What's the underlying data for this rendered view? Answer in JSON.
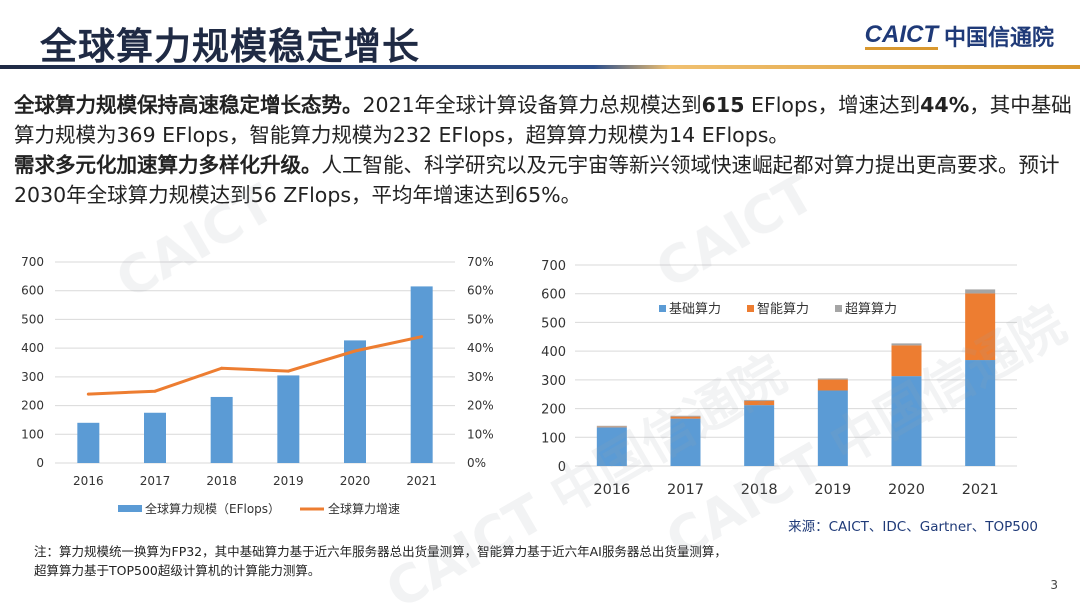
{
  "title": "全球算力规模稳定增长",
  "logo": {
    "en": "CAICT",
    "cn": "中国信通院"
  },
  "paragraphs": [
    {
      "bold": "全球算力规模保持高速稳定增长态势。",
      "text1": "2021年全球计算设备算力总规模达到",
      "b2": "615",
      "text2": " EFlops，增速达到",
      "b3": "44%",
      "text3": "，其中基础算力规模为369 EFlops，智能算力规模为232 EFlops，超算算力规模为14 EFlops。"
    },
    {
      "bold": "需求多元化加速算力多样化升级。",
      "text1": "人工智能、科学研究以及元宇宙等新兴领域快速崛起都对算力提出更高要求。预计2030年全球算力规模达到56 ZFlops，平均年增速达到65%。"
    }
  ],
  "chart_data": [
    {
      "type": "bar+line",
      "categories": [
        "2016",
        "2017",
        "2018",
        "2019",
        "2020",
        "2021"
      ],
      "series": [
        {
          "name": "全球算力规模（EFlops）",
          "type": "bar",
          "axis": "left",
          "values": [
            140,
            175,
            230,
            305,
            427,
            615
          ],
          "color": "#5b9bd5"
        },
        {
          "name": "全球算力增速",
          "type": "line",
          "axis": "right",
          "values": [
            24,
            25,
            33,
            32,
            39,
            44
          ],
          "color": "#ed7d31"
        }
      ],
      "ylim": [
        0,
        700
      ],
      "yticks": [
        "0",
        "100",
        "200",
        "300",
        "400",
        "500",
        "600",
        "700"
      ],
      "y2lim": [
        0,
        70
      ],
      "y2ticks": [
        "0%",
        "10%",
        "20%",
        "30%",
        "40%",
        "50%",
        "60%",
        "70%"
      ],
      "grid": true,
      "legend": "bottom"
    },
    {
      "type": "stacked-bar",
      "categories": [
        "2016",
        "2017",
        "2018",
        "2019",
        "2020",
        "2021"
      ],
      "series": [
        {
          "name": "基础算力",
          "values": [
            135,
            165,
            212,
            263,
            313,
            369
          ],
          "color": "#5b9bd5"
        },
        {
          "name": "智能算力",
          "values": [
            2,
            7,
            15,
            38,
            107,
            232
          ],
          "color": "#ed7d31"
        },
        {
          "name": "超算算力",
          "values": [
            3,
            3,
            3,
            4,
            7,
            14
          ],
          "color": "#a5a5a5"
        }
      ],
      "ylim": [
        0,
        700
      ],
      "yticks": [
        "0",
        "100",
        "200",
        "300",
        "400",
        "500",
        "600",
        "700"
      ],
      "grid": true,
      "legend": "top"
    }
  ],
  "source": "来源：CAICT、IDC、Gartner、TOP500",
  "note": [
    "注：算力规模统一换算为FP32，其中基础算力基于近六年服务器总出货量测算，智能算力基于近六年AI服务器总出货量测算，",
    "超算算力基于TOP500超级计算机的计算能力测算。"
  ],
  "page_number": "3"
}
